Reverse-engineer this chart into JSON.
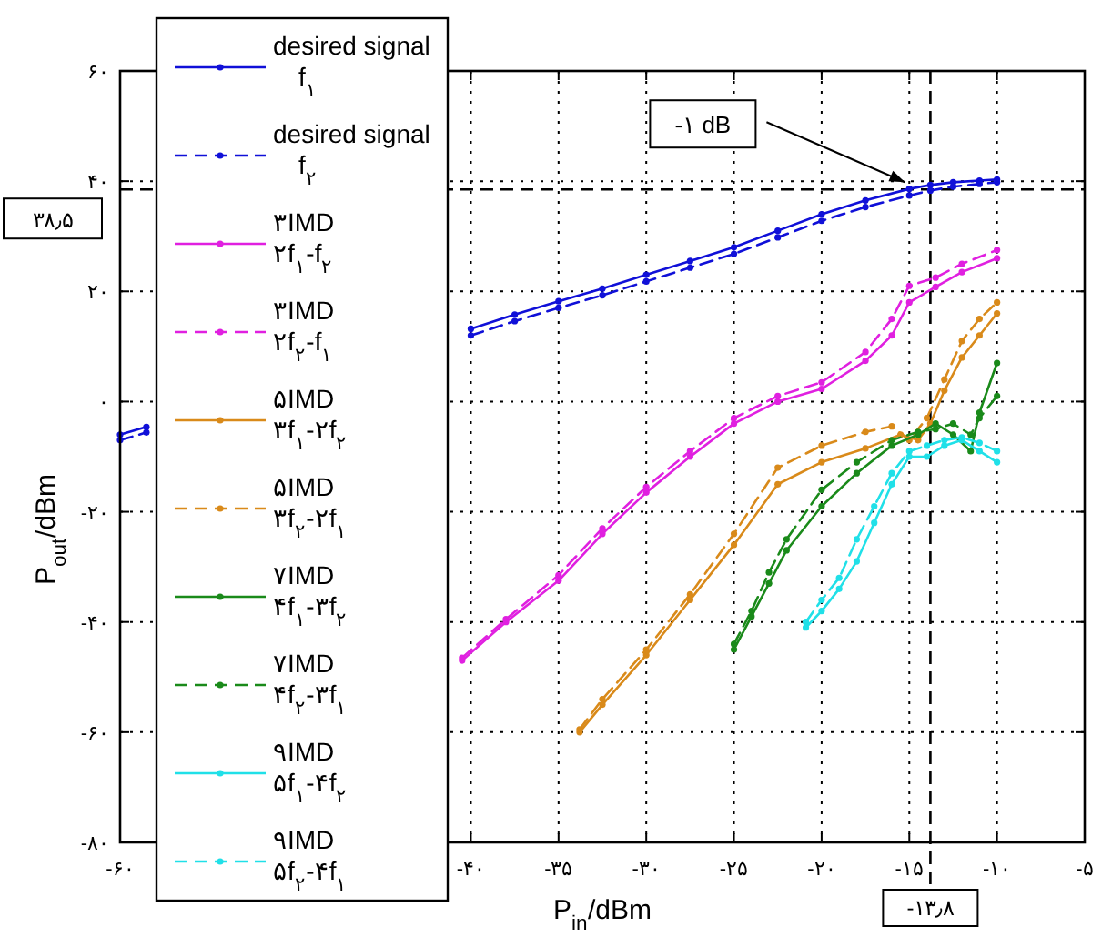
{
  "chart_data": {
    "type": "line",
    "xlabel": "P$_{in}$/dBm",
    "ylabel": "P$_{out}$/dBm",
    "xlim": [
      -60,
      -5
    ],
    "ylim": [
      -80,
      60
    ],
    "xticks": [
      {
        "value": -60,
        "label": "-۶۰"
      },
      {
        "value": -55,
        "label": null
      },
      {
        "value": -50,
        "label": null
      },
      {
        "value": -45,
        "label": null
      },
      {
        "value": -40,
        "label": "-۴۰"
      },
      {
        "value": -35,
        "label": "-۳۵"
      },
      {
        "value": -30,
        "label": "-۳۰"
      },
      {
        "value": -25,
        "label": "-۲۵"
      },
      {
        "value": -20,
        "label": "-۲۰"
      },
      {
        "value": -15,
        "label": "-۱۵"
      },
      {
        "value": -10,
        "label": "-۱۰"
      },
      {
        "value": -5,
        "label": "-۵"
      }
    ],
    "yticks": [
      {
        "value": -80,
        "label": "-۸۰"
      },
      {
        "value": -60,
        "label": "-۶۰"
      },
      {
        "value": -40,
        "label": "-۴۰"
      },
      {
        "value": -20,
        "label": "-۲۰"
      },
      {
        "value": 0,
        "label": "۰"
      },
      {
        "value": 20,
        "label": "۲۰"
      },
      {
        "value": 40,
        "label": "۴۰"
      },
      {
        "value": 60,
        "label": "۶۰"
      }
    ],
    "grid": true,
    "legend": "left",
    "marker": "circle",
    "ref_lines": [
      {
        "axis": "y",
        "value": 38.5,
        "label": "۳۸٫۵",
        "color": "#000000",
        "line_style": "dashed"
      },
      {
        "axis": "x",
        "value": -13.8,
        "label": "-۱۳٫۸",
        "color": "#000000",
        "line_style": "dashed"
      }
    ],
    "annotations": [
      "-۱ dB"
    ],
    "series": [
      {
        "name": "desired signal\nf$_{۱}$",
        "color": "#1010d8",
        "line_style": "solid",
        "x": [
          -60,
          -58.5,
          -50,
          -40,
          -37.5,
          -35,
          -32.5,
          -30,
          -27.5,
          -25,
          -22.5,
          -20,
          -17.5,
          -15,
          -13.8,
          -12.5,
          -11,
          -10
        ],
        "values": [
          -6,
          -4.6,
          null,
          13.2,
          15.8,
          18.2,
          20.5,
          23,
          25.5,
          28,
          31,
          34,
          36.5,
          38.6,
          39.3,
          39.8,
          40.1,
          40.3
        ]
      },
      {
        "name": "desired signal\nf$_{۲}$",
        "color": "#1010d8",
        "line_style": "dashed",
        "x": [
          -60,
          -58.5,
          -50,
          -40,
          -37.5,
          -35,
          -32.5,
          -30,
          -27.5,
          -25,
          -22.5,
          -20,
          -17.5,
          -15,
          -13.8,
          -12.5,
          -11,
          -10
        ],
        "values": [
          -7,
          -5.6,
          null,
          12,
          14.6,
          17,
          19.3,
          21.8,
          24.3,
          26.8,
          29.8,
          32.8,
          35.3,
          37.4,
          38.3,
          39,
          39.5,
          39.8
        ]
      },
      {
        "name": "۳IMD\n۲f$_{۱}$-f$_{۲}$",
        "color": "#e020e0",
        "line_style": "solid",
        "x": [
          -40.5,
          -38,
          -35,
          -32.5,
          -30,
          -27.5,
          -25,
          -22.5,
          -20,
          -17.5,
          -16,
          -15,
          -13.5,
          -12,
          -10
        ],
        "values": [
          -47,
          -40,
          -32.5,
          -24,
          -16.5,
          -10,
          -4,
          0,
          2.3,
          7.4,
          12,
          18,
          20.8,
          23.5,
          26
        ]
      },
      {
        "name": "۳IMD\n۲f$_{۲}$-f$_{۱}$",
        "color": "#e020e0",
        "line_style": "dashed",
        "x": [
          -40.5,
          -38,
          -35,
          -32.5,
          -30,
          -27.5,
          -25,
          -22.5,
          -20,
          -17.5,
          -16,
          -15,
          -13.5,
          -12,
          -10
        ],
        "values": [
          -46.5,
          -39.5,
          -31.5,
          -23,
          -15.5,
          -9,
          -3,
          1,
          3.5,
          9,
          15,
          21,
          22.5,
          25,
          27.5
        ]
      },
      {
        "name": "۵IMD\n۳f$_{۱}$-۲f$_{۲}$",
        "color": "#d98a1a",
        "line_style": "solid",
        "x": [
          -33.8,
          -32.5,
          -30,
          -27.5,
          -25,
          -22.5,
          -20,
          -17.5,
          -15.5,
          -14.5,
          -13.8,
          -13,
          -12,
          -11,
          -10
        ],
        "values": [
          -60,
          -55,
          -46,
          -36,
          -26,
          -15,
          -11,
          -8.5,
          -6,
          -7,
          -4,
          2,
          8,
          12,
          16
        ]
      },
      {
        "name": "۵IMD\n۳f$_{۲}$-۲f$_{۱}$",
        "color": "#d98a1a",
        "line_style": "dashed",
        "x": [
          -33.8,
          -32.5,
          -30,
          -27.5,
          -25,
          -22.5,
          -20,
          -17.5,
          -16,
          -15,
          -14,
          -13,
          -12,
          -11,
          -10
        ],
        "values": [
          -59.5,
          -54,
          -45,
          -35,
          -24,
          -12,
          -8,
          -5.5,
          -4.5,
          -7,
          -3,
          4,
          11,
          15,
          18
        ]
      },
      {
        "name": "۷IMD\n۴f$_{۱}$-۳f$_{۲}$",
        "color": "#1a8a1a",
        "line_style": "solid",
        "x": [
          -25,
          -24,
          -23,
          -22,
          -20,
          -18,
          -16,
          -14.5,
          -13.5,
          -12.5,
          -11.5,
          -11,
          -10
        ],
        "values": [
          -45,
          -39,
          -33,
          -27,
          -19,
          -13,
          -8,
          -6,
          -4,
          -6,
          -9,
          -2,
          7
        ]
      },
      {
        "name": "۷IMD\n۴f$_{۲}$-۳f$_{۱}$",
        "color": "#1a8a1a",
        "line_style": "dashed",
        "x": [
          -25,
          -24,
          -23,
          -22,
          -20,
          -18,
          -16,
          -14.5,
          -13.5,
          -12.5,
          -11.5,
          -11,
          -10
        ],
        "values": [
          -44,
          -38,
          -31,
          -25,
          -16,
          -11,
          -7,
          -5.5,
          -5,
          -4,
          -6,
          -3,
          1
        ]
      },
      {
        "name": "۹IMD\n۵f$_{۱}$-۴f$_{۲}$",
        "color": "#20e0e8",
        "line_style": "solid",
        "x": [
          -20.9,
          -20,
          -19,
          -18,
          -17,
          -16,
          -15,
          -14,
          -13,
          -12,
          -11,
          -10
        ],
        "values": [
          -41,
          -38,
          -34,
          -29,
          -22,
          -15,
          -10,
          -10,
          -8,
          -7,
          -9,
          -11
        ]
      },
      {
        "name": "۹IMD\n۵f$_{۲}$-۴f$_{۱}$",
        "color": "#20e0e8",
        "line_style": "dashed",
        "x": [
          -20.9,
          -20,
          -19,
          -18,
          -17,
          -16,
          -15,
          -14,
          -13,
          -12,
          -11,
          -10
        ],
        "values": [
          -40,
          -36,
          -32,
          -25,
          -19,
          -13,
          -9,
          -8,
          -7,
          -6.5,
          -7.5,
          -9
        ]
      }
    ]
  }
}
